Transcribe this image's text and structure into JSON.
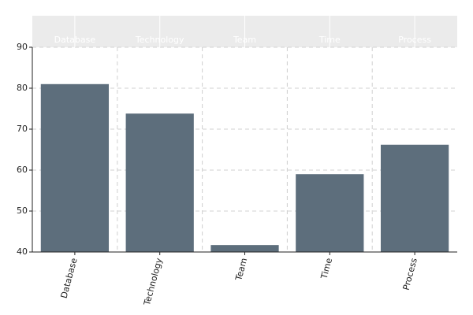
{
  "chart_data": {
    "type": "bar",
    "categories": [
      "Database",
      "Technology",
      "Team",
      "Time",
      "Process"
    ],
    "values": [
      81,
      73.8,
      41.7,
      59,
      66.2
    ],
    "color": "#5d6e7c",
    "ylim": [
      40,
      90
    ],
    "yticks": [
      40,
      50,
      60,
      70,
      80,
      90
    ],
    "grid": true
  }
}
